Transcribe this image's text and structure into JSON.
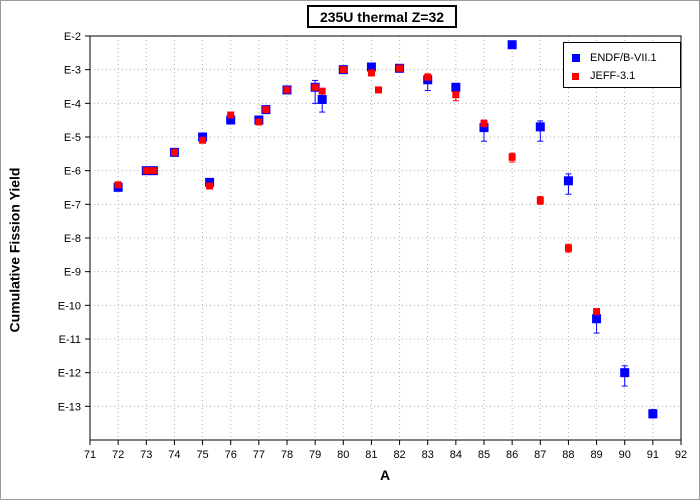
{
  "chart_data": {
    "type": "scatter",
    "title": "235U thermal Z=32",
    "xlabel": "A",
    "ylabel": "Cumulative Fission Yield",
    "xlim": [
      71,
      92
    ],
    "ylim_log10": [
      -14,
      -2
    ],
    "x_ticks": [
      71,
      72,
      73,
      74,
      75,
      76,
      77,
      78,
      79,
      80,
      81,
      82,
      83,
      84,
      85,
      86,
      87,
      88,
      89,
      90,
      91,
      92
    ],
    "y_ticks": [
      {
        "exp": -2,
        "label": "E-2"
      },
      {
        "exp": -3,
        "label": "E-3"
      },
      {
        "exp": -4,
        "label": "E-4"
      },
      {
        "exp": -5,
        "label": "E-5"
      },
      {
        "exp": -6,
        "label": "E-6"
      },
      {
        "exp": -7,
        "label": "E-7"
      },
      {
        "exp": -8,
        "label": "E-8"
      },
      {
        "exp": -9,
        "label": "E-9"
      },
      {
        "exp": -10,
        "label": "E-10"
      },
      {
        "exp": -11,
        "label": "E-11"
      },
      {
        "exp": -12,
        "label": "E-12"
      },
      {
        "exp": -13,
        "label": "E-13"
      }
    ],
    "grid": true,
    "legend_position": "top-right",
    "series": [
      {
        "name": "ENDF/B-VII.1",
        "color": "#0000ff",
        "marker": "square-large",
        "points": [
          {
            "x": 72,
            "y": 3.2e-07,
            "err_lo": 2.7e-07,
            "err_hi": 3.7e-07
          },
          {
            "x": 73,
            "y": 1e-06
          },
          {
            "x": 73.25,
            "y": 1e-06,
            "err_lo": 8.5e-07,
            "err_hi": 1.2e-06
          },
          {
            "x": 74,
            "y": 3.5e-06
          },
          {
            "x": 75,
            "y": 1e-05
          },
          {
            "x": 75.25,
            "y": 4.5e-07
          },
          {
            "x": 76,
            "y": 3.2e-05
          },
          {
            "x": 77,
            "y": 3.2e-05
          },
          {
            "x": 77.25,
            "y": 6.5e-05
          },
          {
            "x": 78,
            "y": 0.00025
          },
          {
            "x": 79,
            "y": 0.0003,
            "err_lo": 0.0001,
            "err_hi": 0.00048
          },
          {
            "x": 79.25,
            "y": 0.00013,
            "err_lo": 5.5e-05,
            "err_hi": 0.00026
          },
          {
            "x": 80,
            "y": 0.001
          },
          {
            "x": 81,
            "y": 0.0012
          },
          {
            "x": 82,
            "y": 0.0011
          },
          {
            "x": 83,
            "y": 0.0005,
            "err_lo": 0.00024,
            "err_hi": 0.00073
          },
          {
            "x": 84,
            "y": 0.0003
          },
          {
            "x": 85,
            "y": 1.9e-05,
            "err_lo": 7.5e-06,
            "err_hi": 3e-05
          },
          {
            "x": 86,
            "y": 0.0055
          },
          {
            "x": 87,
            "y": 2e-05,
            "err_lo": 7.5e-06,
            "err_hi": 3e-05
          },
          {
            "x": 88,
            "y": 5e-07,
            "err_lo": 2e-07,
            "err_hi": 8e-07
          },
          {
            "x": 89,
            "y": 4e-11,
            "err_lo": 1.5e-11,
            "err_hi": 5.8e-11
          },
          {
            "x": 90,
            "y": 1e-12,
            "err_lo": 4e-13,
            "err_hi": 1.6e-12
          },
          {
            "x": 91,
            "y": 6e-14,
            "err_lo": 4.5e-14,
            "err_hi": 8e-14
          }
        ]
      },
      {
        "name": "JEFF-3.1",
        "color": "#ff0000",
        "marker": "square-small",
        "points": [
          {
            "x": 72,
            "y": 3.8e-07
          },
          {
            "x": 73,
            "y": 1e-06
          },
          {
            "x": 73.25,
            "y": 1e-06
          },
          {
            "x": 74,
            "y": 3.5e-06
          },
          {
            "x": 75,
            "y": 8e-06
          },
          {
            "x": 75.25,
            "y": 3.5e-07
          },
          {
            "x": 76,
            "y": 4.5e-05
          },
          {
            "x": 77,
            "y": 2.8e-05
          },
          {
            "x": 77.25,
            "y": 6.5e-05
          },
          {
            "x": 78,
            "y": 0.00025
          },
          {
            "x": 79,
            "y": 0.0003
          },
          {
            "x": 79.25,
            "y": 0.00023
          },
          {
            "x": 80,
            "y": 0.001
          },
          {
            "x": 81,
            "y": 0.0008
          },
          {
            "x": 81.25,
            "y": 0.00025
          },
          {
            "x": 82,
            "y": 0.0011
          },
          {
            "x": 83,
            "y": 0.0006,
            "err_lo": 0.00045,
            "err_hi": 0.00075
          },
          {
            "x": 84,
            "y": 0.00018,
            "err_lo": 0.00012,
            "err_hi": 0.00026
          },
          {
            "x": 85,
            "y": 2.5e-05,
            "err_lo": 1.8e-05,
            "err_hi": 3.2e-05
          },
          {
            "x": 86,
            "y": 2.5e-06,
            "err_lo": 1.8e-06,
            "err_hi": 3.3e-06
          },
          {
            "x": 87,
            "y": 1.3e-07,
            "err_lo": 1e-07,
            "err_hi": 1.7e-07
          },
          {
            "x": 88,
            "y": 5e-09,
            "err_lo": 3.8e-09,
            "err_hi": 6.5e-09
          },
          {
            "x": 89,
            "y": 6.5e-11,
            "err_lo": 5e-11,
            "err_hi": 8e-11
          }
        ]
      }
    ]
  }
}
